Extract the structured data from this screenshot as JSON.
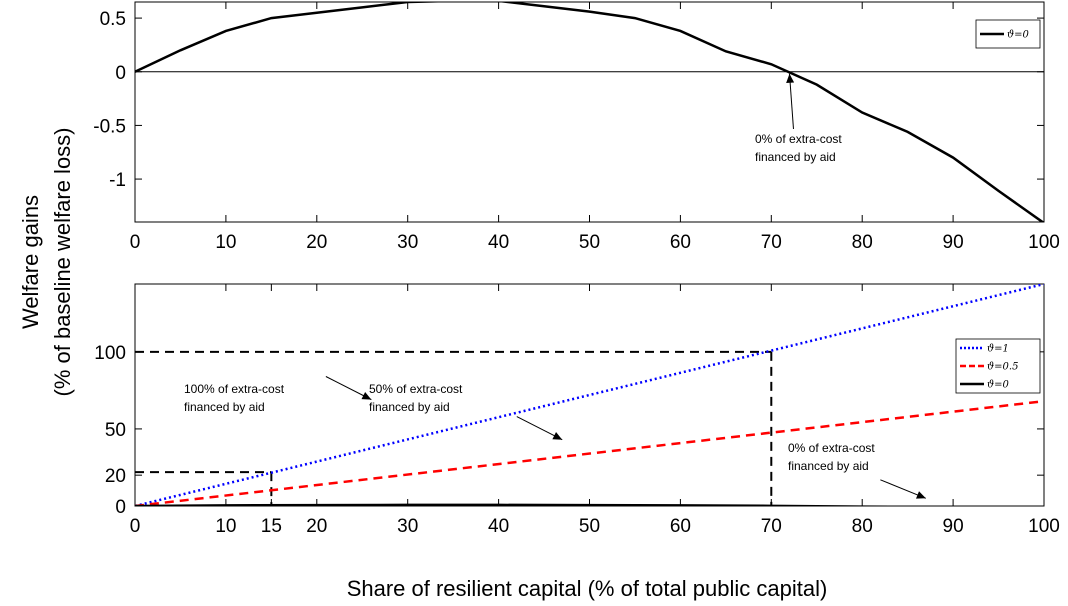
{
  "axis_labels": {
    "ylabel_line1": "Welfare gains",
    "ylabel_line2": "(% of baseline welfare loss)",
    "xlabel": "Share of resilient capital (% of total public capital)"
  },
  "chart_data": [
    {
      "type": "line",
      "xlim": [
        0,
        100
      ],
      "ylim": [
        -1.4,
        0.65
      ],
      "xticks": [
        0,
        10,
        20,
        30,
        40,
        50,
        60,
        70,
        80,
        90,
        100
      ],
      "yticks": [
        0.5,
        0,
        -0.5,
        -1
      ],
      "ytick_labels": [
        "0.5",
        "0",
        "-0.5",
        "-1"
      ],
      "hline_at_zero": true,
      "legend_position": "top-right",
      "series": [
        {
          "name": "ϑ=0",
          "color": "#000000",
          "style": "solid",
          "x": [
            0,
            5,
            10,
            15,
            20,
            25,
            30,
            35,
            40,
            45,
            50,
            55,
            60,
            65,
            70,
            75,
            80,
            85,
            90,
            95,
            100
          ],
          "y": [
            0.0,
            0.2,
            0.38,
            0.5,
            0.55,
            0.6,
            0.65,
            0.66,
            0.66,
            0.61,
            0.56,
            0.5,
            0.38,
            0.19,
            0.07,
            -0.12,
            -0.38,
            -0.56,
            -0.8,
            -1.11,
            -1.41
          ]
        }
      ],
      "annotations": [
        {
          "lines": [
            "0% of extra-cost",
            "financed by aid"
          ],
          "arrow_to": [
            72,
            0
          ]
        }
      ]
    },
    {
      "type": "line",
      "xlim": [
        0,
        100
      ],
      "ylim": [
        0,
        144
      ],
      "xticks": [
        0,
        10,
        15,
        20,
        30,
        40,
        50,
        60,
        70,
        80,
        90,
        100
      ],
      "yticks": [
        0,
        20,
        50,
        100
      ],
      "ytick_labels": [
        "0",
        "20",
        "50",
        "100"
      ],
      "legend_position": "top-right",
      "series": [
        {
          "name": "ϑ=1",
          "color": "#0000ff",
          "style": "dotted",
          "x": [
            0,
            100
          ],
          "y": [
            0,
            144
          ]
        },
        {
          "name": "ϑ=0.5",
          "color": "#ff0000",
          "style": "dashed",
          "x": [
            0,
            100
          ],
          "y": [
            0,
            68
          ]
        },
        {
          "name": "ϑ=0",
          "color": "#000000",
          "style": "solid",
          "x": [
            0,
            10,
            20,
            30,
            40,
            50,
            60,
            70,
            80,
            90,
            100
          ],
          "y": [
            0.0,
            0.4,
            0.6,
            0.7,
            0.7,
            0.6,
            0.4,
            0.1,
            -0.4,
            -0.8,
            -1.4
          ]
        }
      ],
      "reference_lines": [
        {
          "x": 15,
          "y": 22
        },
        {
          "x": 70,
          "y": 100
        }
      ],
      "annotations": [
        {
          "lines": [
            "100% of extra-cost",
            "financed by aid"
          ],
          "arrow_from": [
            21,
            84
          ],
          "arrow_to": [
            26,
            69
          ]
        },
        {
          "lines": [
            "50% of extra-cost",
            "financed by aid"
          ],
          "arrow_from": [
            42,
            58
          ],
          "arrow_to": [
            47,
            43
          ]
        },
        {
          "lines": [
            "0% of extra-cost",
            "financed by aid"
          ],
          "arrow_from": [
            82,
            17
          ],
          "arrow_to": [
            87,
            5
          ]
        }
      ]
    }
  ]
}
